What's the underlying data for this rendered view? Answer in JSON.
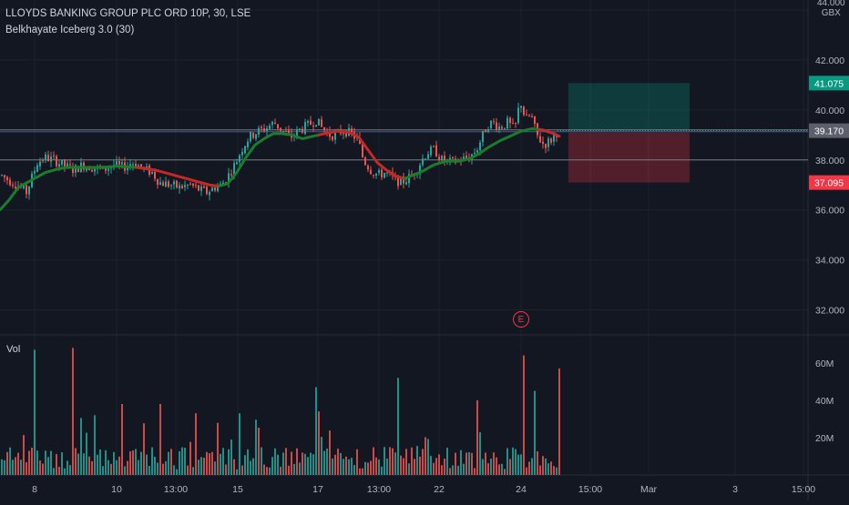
{
  "header": {
    "title": "LLOYDS BANKING GROUP PLC ORD 10P, 30, LSE",
    "indicator": "Belkhayate Iceberg 3.0 (30)"
  },
  "price_axis": {
    "ticks": [
      "44.000",
      "42.000",
      "40.000",
      "38.000",
      "36.000",
      "34.000",
      "32.000"
    ],
    "tick_values": [
      44,
      42,
      40,
      38,
      36,
      34,
      32
    ],
    "currency": "GBX"
  },
  "badges": {
    "target": {
      "text": "41.075",
      "value": 41.075,
      "color": "#089981"
    },
    "current": {
      "text": "39.170",
      "value": 39.17,
      "color": "#5d606b"
    },
    "stop": {
      "text": "37.095",
      "value": 37.095,
      "color": "#f23645"
    }
  },
  "volume": {
    "label": "Vol",
    "ticks": [
      "60M",
      "40M",
      "20M"
    ],
    "tick_values": [
      60,
      40,
      20
    ]
  },
  "time_axis": {
    "labels": [
      "8",
      "10",
      "13:00",
      "15",
      "17",
      "13:00",
      "22",
      "24",
      "15:00",
      "Mar",
      "3",
      "15:00"
    ]
  },
  "event_marker": {
    "label": "E"
  },
  "colors": {
    "background": "#131722",
    "up": "#26a69a",
    "down": "#ef5350",
    "line_up": "#1b7d2c",
    "line_down": "#c62828",
    "target_zone": "rgba(8,153,129,0.28)",
    "stop_zone": "rgba(242,54,69,0.28)",
    "grid": "#1e222d",
    "axis_text": "#b2b5be"
  },
  "chart_data": {
    "type": "candlestick",
    "ylim": [
      31,
      44.4
    ],
    "volume_ylim": [
      0,
      75
    ],
    "key_levels": [
      39.2,
      38.0
    ],
    "position": {
      "entry": 39.17,
      "target": 41.075,
      "stop": 37.095
    },
    "price_path": [
      [
        0,
        37.4
      ],
      [
        8,
        37.2
      ],
      [
        18,
        37.0
      ],
      [
        28,
        36.7
      ],
      [
        34,
        37.3
      ],
      [
        40,
        37.9
      ],
      [
        48,
        38.1
      ],
      [
        58,
        38.0
      ],
      [
        68,
        37.8
      ],
      [
        80,
        37.6
      ],
      [
        90,
        37.8
      ],
      [
        100,
        37.7
      ],
      [
        112,
        37.6
      ],
      [
        124,
        37.8
      ],
      [
        134,
        37.7
      ],
      [
        144,
        37.9
      ],
      [
        150,
        37.8
      ],
      [
        158,
        37.6
      ],
      [
        166,
        37.5
      ],
      [
        174,
        37.1
      ],
      [
        186,
        37.0
      ],
      [
        196,
        36.9
      ],
      [
        208,
        37.0
      ],
      [
        218,
        36.8
      ],
      [
        226,
        36.7
      ],
      [
        234,
        36.9
      ],
      [
        242,
        37.0
      ],
      [
        250,
        37.4
      ],
      [
        258,
        37.9
      ],
      [
        264,
        38.4
      ],
      [
        272,
        38.9
      ],
      [
        280,
        39.1
      ],
      [
        292,
        39.3
      ],
      [
        300,
        39.5
      ],
      [
        308,
        39.2
      ],
      [
        318,
        38.9
      ],
      [
        328,
        39.2
      ],
      [
        338,
        39.4
      ],
      [
        346,
        39.6
      ],
      [
        352,
        39.3
      ],
      [
        360,
        39.0
      ],
      [
        368,
        39.0
      ],
      [
        376,
        39.2
      ],
      [
        386,
        39.0
      ],
      [
        392,
        38.8
      ],
      [
        398,
        38.0
      ],
      [
        406,
        37.6
      ],
      [
        414,
        37.4
      ],
      [
        422,
        37.5
      ],
      [
        432,
        37.2
      ],
      [
        440,
        37.1
      ],
      [
        448,
        37.3
      ],
      [
        456,
        37.6
      ],
      [
        462,
        38.0
      ],
      [
        468,
        38.3
      ],
      [
        476,
        38.4
      ],
      [
        484,
        38.0
      ],
      [
        494,
        37.9
      ],
      [
        504,
        38.0
      ],
      [
        514,
        38.1
      ],
      [
        522,
        38.4
      ],
      [
        528,
        38.9
      ],
      [
        534,
        39.4
      ],
      [
        540,
        39.5
      ],
      [
        548,
        39.3
      ],
      [
        556,
        39.5
      ],
      [
        564,
        39.2
      ],
      [
        570,
        40.4
      ],
      [
        576,
        39.6
      ],
      [
        582,
        39.8
      ],
      [
        588,
        39.0
      ],
      [
        596,
        38.6
      ],
      [
        604,
        38.8
      ],
      [
        612,
        39.2
      ]
    ],
    "iceberg_line": [
      [
        0,
        36.0
      ],
      [
        10,
        36.4
      ],
      [
        20,
        36.9
      ],
      [
        30,
        37.1
      ],
      [
        40,
        37.3
      ],
      [
        50,
        37.5
      ],
      [
        60,
        37.6
      ],
      [
        72,
        37.7
      ],
      [
        90,
        37.7
      ],
      [
        110,
        37.7
      ],
      [
        130,
        37.75
      ],
      [
        150,
        37.7
      ],
      [
        170,
        37.6
      ],
      [
        190,
        37.4
      ],
      [
        210,
        37.2
      ],
      [
        230,
        37.0
      ],
      [
        240,
        36.95
      ],
      [
        250,
        37.05
      ],
      [
        260,
        37.5
      ],
      [
        270,
        38.1
      ],
      [
        280,
        38.6
      ],
      [
        290,
        38.85
      ],
      [
        300,
        39.05
      ],
      [
        310,
        39.05
      ],
      [
        320,
        39.0
      ],
      [
        332,
        38.85
      ],
      [
        344,
        38.95
      ],
      [
        356,
        39.05
      ],
      [
        370,
        39.15
      ],
      [
        384,
        39.1
      ],
      [
        394,
        38.9
      ],
      [
        404,
        38.4
      ],
      [
        414,
        37.9
      ],
      [
        424,
        37.6
      ],
      [
        434,
        37.35
      ],
      [
        444,
        37.25
      ],
      [
        454,
        37.4
      ],
      [
        464,
        37.55
      ],
      [
        476,
        37.8
      ],
      [
        490,
        37.95
      ],
      [
        504,
        37.95
      ],
      [
        516,
        38.05
      ],
      [
        526,
        38.25
      ],
      [
        536,
        38.5
      ],
      [
        548,
        38.75
      ],
      [
        560,
        38.95
      ],
      [
        572,
        39.15
      ],
      [
        584,
        39.25
      ],
      [
        596,
        39.2
      ],
      [
        608,
        39.05
      ],
      [
        614,
        38.95
      ]
    ],
    "trend_changes": [
      [
        0,
        "up"
      ],
      [
        150,
        "down"
      ],
      [
        240,
        "up"
      ],
      [
        350,
        "down"
      ],
      [
        444,
        "up"
      ],
      [
        592,
        "down"
      ]
    ],
    "volume_spikes": [
      [
        38,
        67
      ],
      [
        80,
        68
      ],
      [
        134,
        38
      ],
      [
        174,
        38
      ],
      [
        215,
        33
      ],
      [
        262,
        33
      ],
      [
        346,
        47
      ],
      [
        350,
        34
      ],
      [
        436,
        52
      ],
      [
        524,
        40
      ],
      [
        574,
        64
      ],
      [
        586,
        45
      ],
      [
        614,
        57
      ]
    ]
  }
}
